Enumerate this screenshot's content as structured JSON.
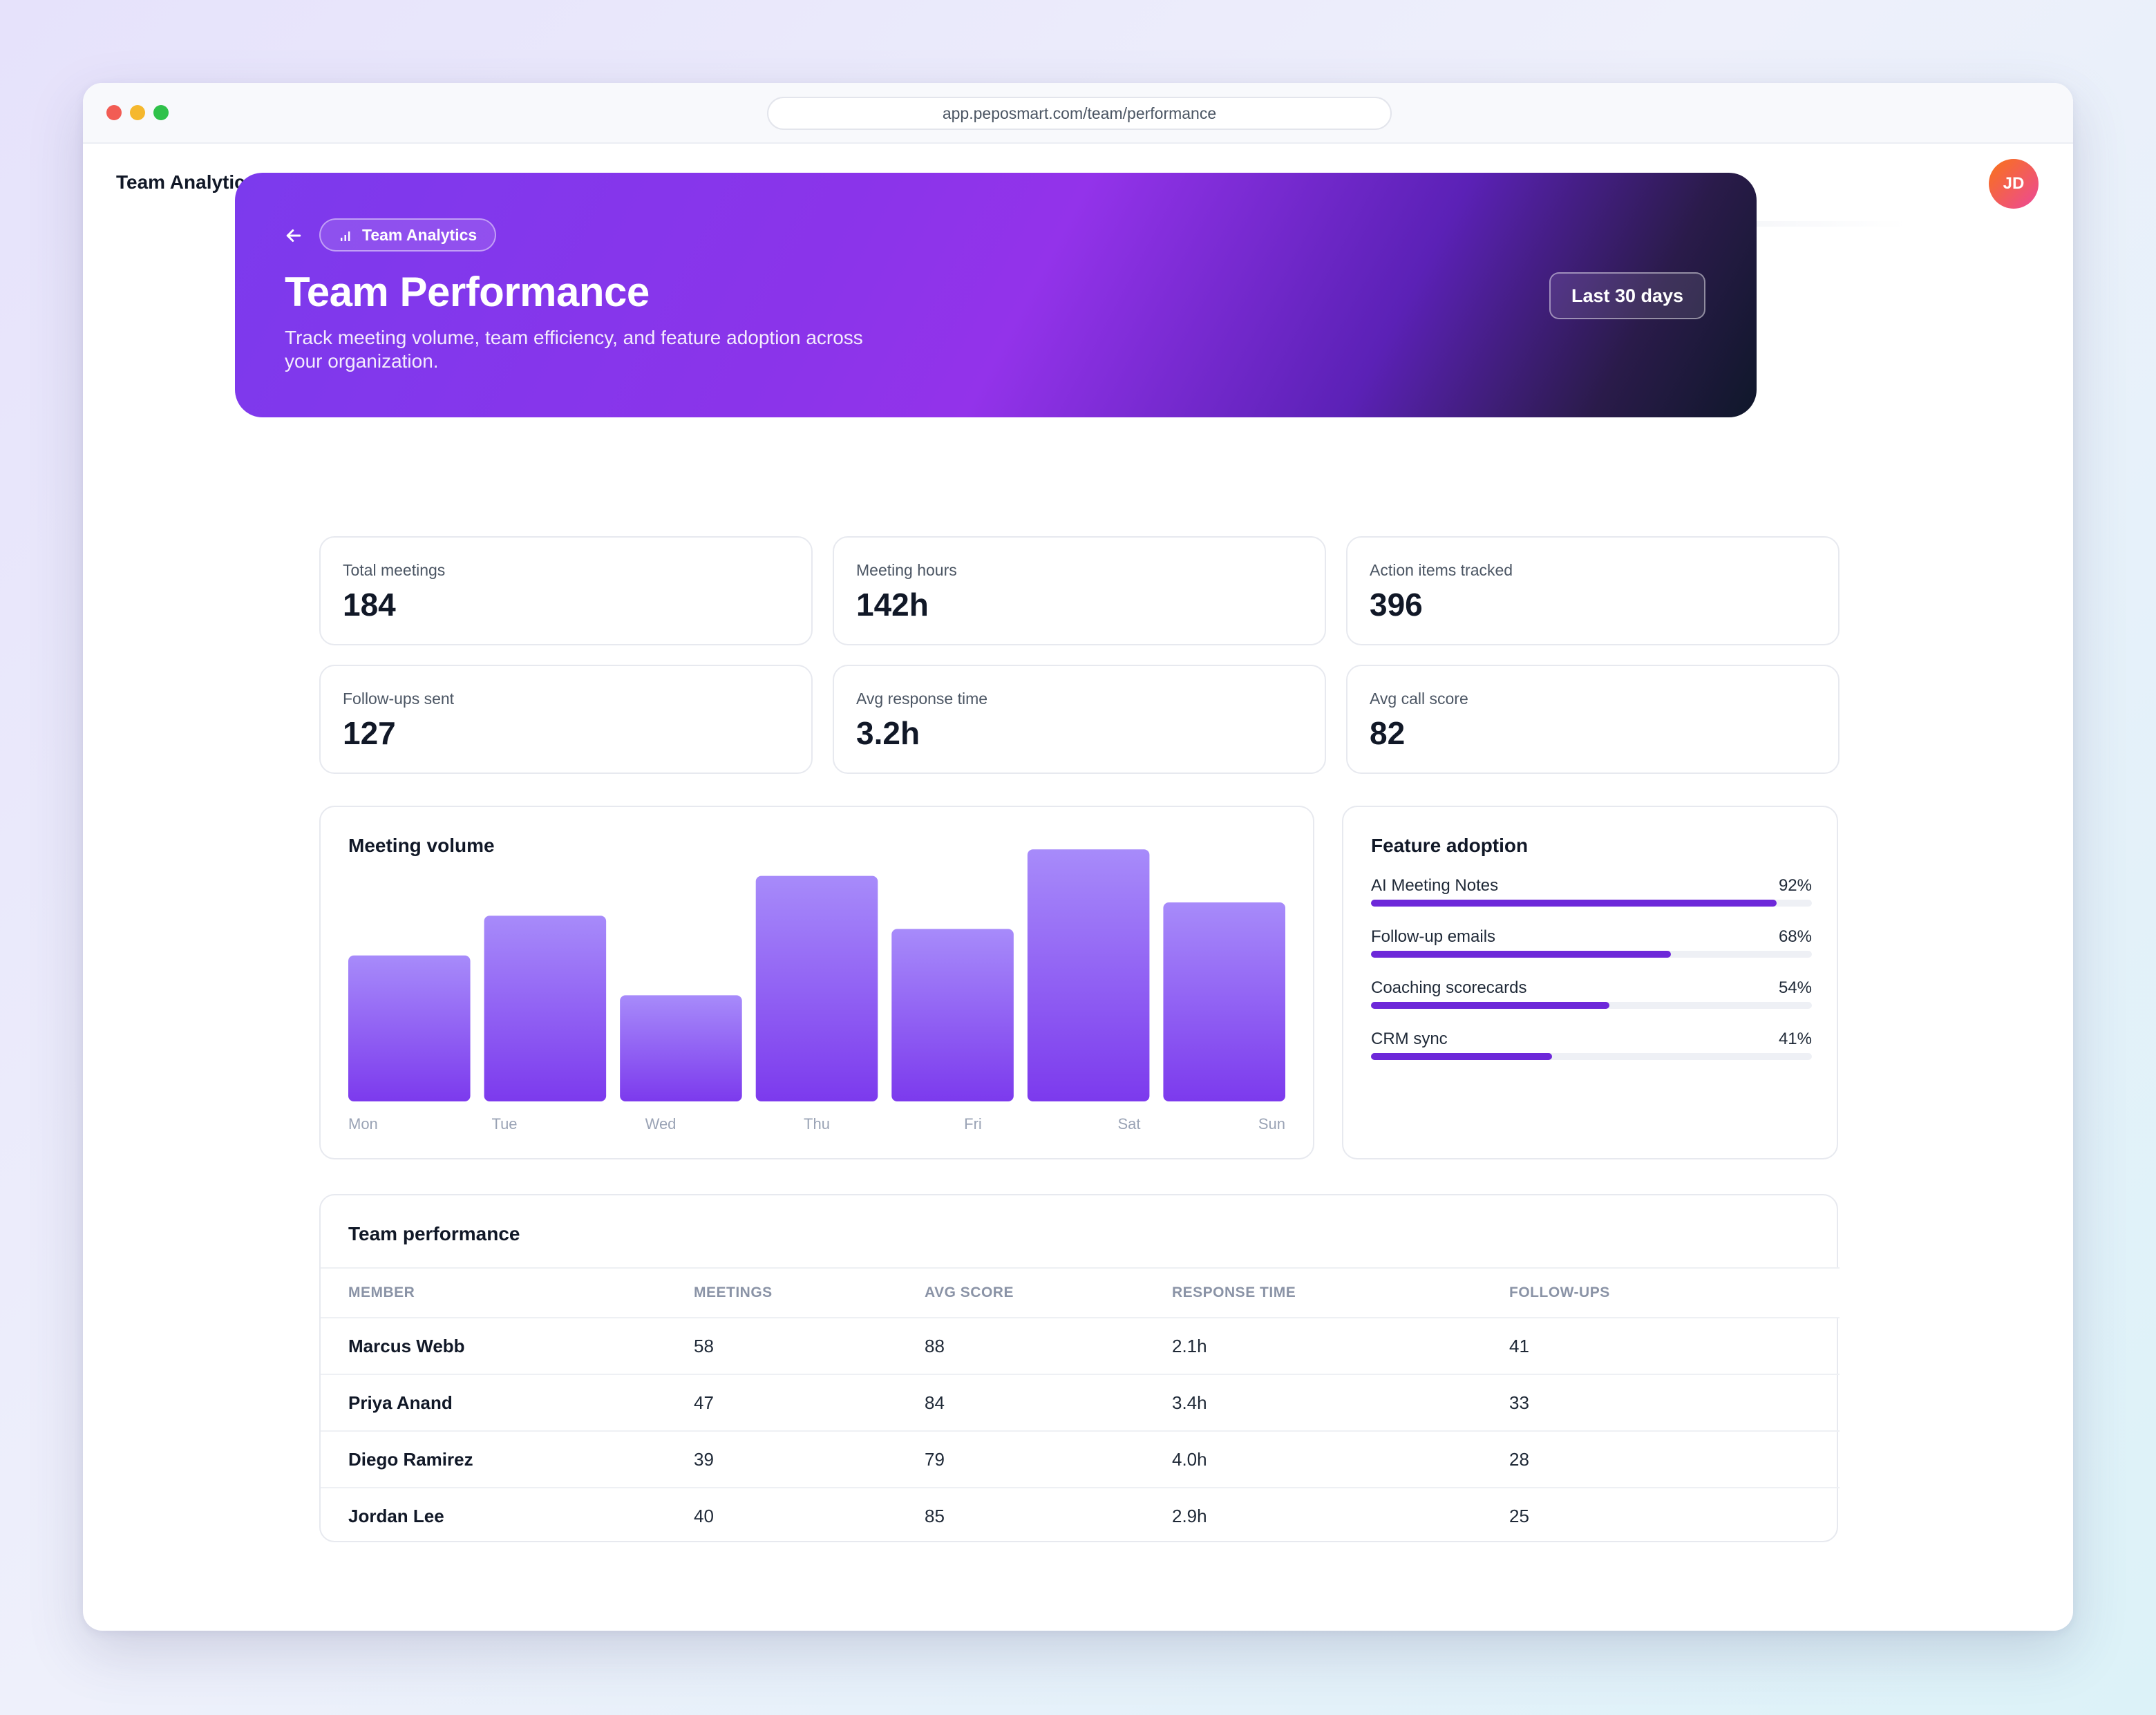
{
  "browser": {
    "url": "app.peposmart.com/team/performance"
  },
  "topbar": {
    "app_title": "Team Analytics",
    "avatar_initials": "JD"
  },
  "hero": {
    "breadcrumb": "Team Analytics",
    "title": "Team Performance",
    "subtitle": "Track meeting volume, team efficiency, and feature adoption across your organization.",
    "range_label": "Last 30 days"
  },
  "kpis": [
    {
      "label": "Total meetings",
      "value": "184"
    },
    {
      "label": "Meeting hours",
      "value": "142h"
    },
    {
      "label": "Action items tracked",
      "value": "396"
    },
    {
      "label": "Follow-ups sent",
      "value": "127"
    },
    {
      "label": "Avg response time",
      "value": "3.2h"
    },
    {
      "label": "Avg call score",
      "value": "82"
    }
  ],
  "meeting_volume": {
    "title": "Meeting volume",
    "chart_data": {
      "type": "bar",
      "categories": [
        "Mon",
        "Tue",
        "Wed",
        "Thu",
        "Fri",
        "Sat",
        "Sun"
      ],
      "values": [
        22,
        28,
        16,
        34,
        26,
        38,
        30
      ],
      "ylim": [
        0,
        40
      ]
    }
  },
  "feature_adoption": {
    "title": "Feature adoption",
    "items": [
      {
        "label": "AI Meeting Notes",
        "pct_label": "92%",
        "value": 92
      },
      {
        "label": "Follow-up emails",
        "pct_label": "68%",
        "value": 68
      },
      {
        "label": "Coaching scorecards",
        "pct_label": "54%",
        "value": 54
      },
      {
        "label": "CRM sync",
        "pct_label": "41%",
        "value": 41
      }
    ]
  },
  "team_table": {
    "title": "Team performance",
    "columns": [
      "MEMBER",
      "MEETINGS",
      "AVG SCORE",
      "RESPONSE TIME",
      "FOLLOW-UPS"
    ],
    "rows": [
      [
        "Marcus Webb",
        "58",
        "88",
        "2.1h",
        "41"
      ],
      [
        "Priya Anand",
        "47",
        "84",
        "3.4h",
        "33"
      ],
      [
        "Diego Ramirez",
        "39",
        "79",
        "4.0h",
        "28"
      ],
      [
        "Jordan Lee",
        "40",
        "85",
        "2.9h",
        "25"
      ]
    ]
  },
  "colors": {
    "accent": "#7c3aed",
    "bar_top": "#a78bfa",
    "bar_bottom": "#7c3aed",
    "progress": "#6d28d9"
  }
}
